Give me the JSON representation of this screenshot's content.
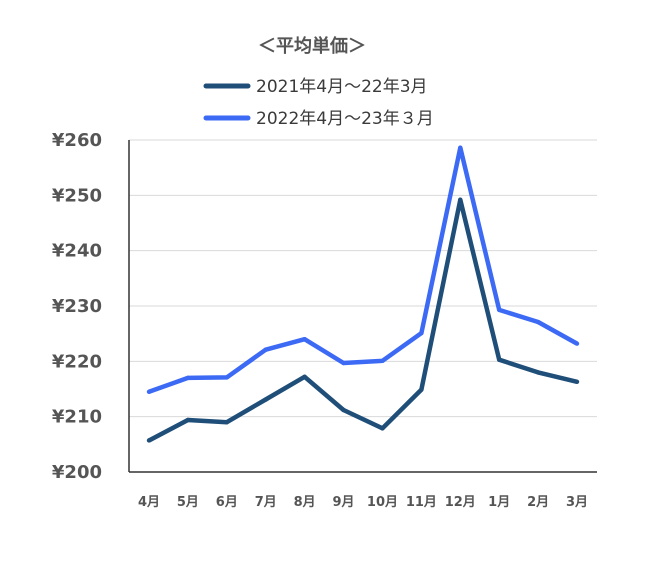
{
  "chart_data": {
    "type": "line",
    "title": "＜平均単価＞",
    "xlabel": "",
    "ylabel": "",
    "categories": [
      "4月",
      "5月",
      "6月",
      "7月",
      "8月",
      "9月",
      "10月",
      "11月",
      "12月",
      "1月",
      "2月",
      "3月"
    ],
    "series": [
      {
        "name": "2021年4月～22年3月",
        "color": "#1f4e79",
        "values": [
          205.7,
          209.4,
          209.0,
          213.1,
          217.2,
          211.2,
          207.9,
          214.9,
          249.2,
          220.3,
          218.0,
          216.3
        ]
      },
      {
        "name": "2022年4月～23年３月",
        "color": "#3d6af5",
        "values": [
          214.5,
          217.0,
          217.1,
          222.1,
          224.0,
          219.7,
          220.1,
          225.1,
          258.6,
          229.3,
          227.1,
          223.2
        ]
      }
    ],
    "ylim": [
      200,
      260
    ],
    "yticks": [
      "¥200",
      "¥210",
      "¥220",
      "¥230",
      "¥240",
      "¥250",
      "¥260"
    ],
    "ytick_values": [
      200,
      210,
      220,
      230,
      240,
      250,
      260
    ],
    "grid": true,
    "legend_position": "top"
  }
}
